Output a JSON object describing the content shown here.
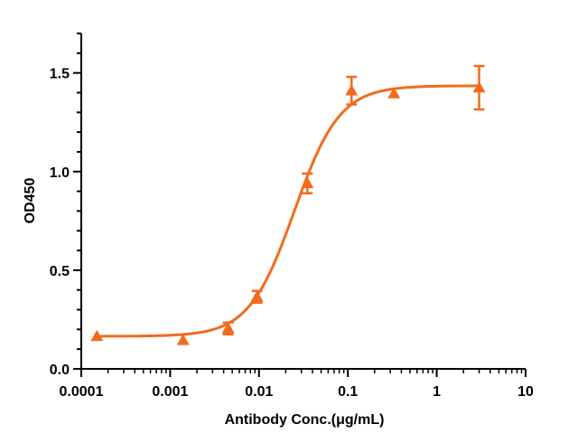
{
  "chart_data": {
    "type": "scatter",
    "title": "",
    "xlabel": "Antibody Conc.(μg/mL)",
    "ylabel": "OD450",
    "x_scale": "log",
    "xlim": [
      0.0001,
      10
    ],
    "ylim": [
      0.0,
      1.7
    ],
    "x_ticks": [
      0.0001,
      0.001,
      0.01,
      0.1,
      1,
      10
    ],
    "x_tick_labels": [
      "0.0001",
      "0.001",
      "0.01",
      "0.1",
      "1",
      "10"
    ],
    "y_ticks": [
      0.0,
      0.5,
      1.0,
      1.5
    ],
    "y_tick_labels": [
      "0.0",
      "0.5",
      "1.0",
      "1.5"
    ],
    "grid": false,
    "legend": "none",
    "marker": "triangle",
    "color": "#F26B1D",
    "series": [
      {
        "points": [
          {
            "x": 0.00015,
            "y": 0.165,
            "err": 0.0
          },
          {
            "x": 0.0014,
            "y": 0.145,
            "err": 0.0
          },
          {
            "x": 0.0045,
            "y": 0.205,
            "err": 0.03
          },
          {
            "x": 0.0095,
            "y": 0.365,
            "err": 0.03
          },
          {
            "x": 0.035,
            "y": 0.94,
            "err": 0.05
          },
          {
            "x": 0.11,
            "y": 1.41,
            "err": 0.07
          },
          {
            "x": 0.33,
            "y": 1.395,
            "err": 0.0
          },
          {
            "x": 3.0,
            "y": 1.425,
            "err": 0.11
          }
        ]
      }
    ],
    "fit_curve": {
      "type": "4PL",
      "bottom": 0.165,
      "top": 1.435,
      "ec50": 0.025,
      "hill": 1.7
    }
  }
}
